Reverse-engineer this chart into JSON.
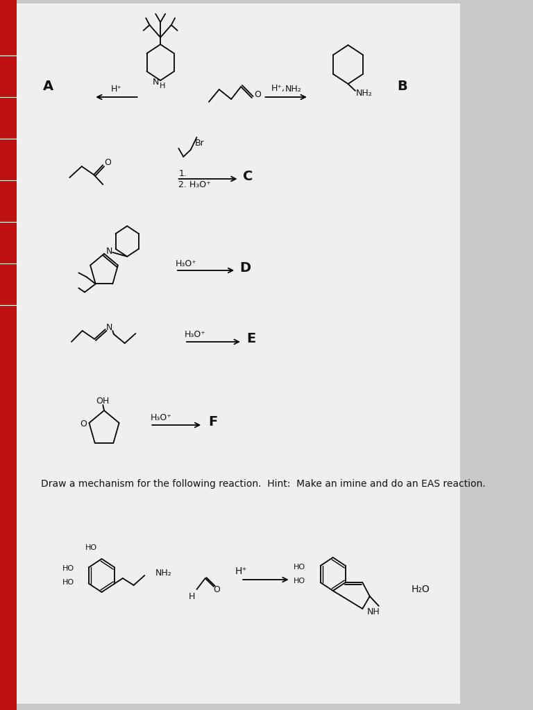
{
  "bg_color": "#c8c8c8",
  "paper_color": "#efefef",
  "text_color": "#111111",
  "hint_text": "Draw a mechanism for the following reaction.  Hint:  Make an imine and do an EAS reaction.",
  "labels": [
    "A",
    "B",
    "C",
    "D",
    "E",
    "F"
  ]
}
